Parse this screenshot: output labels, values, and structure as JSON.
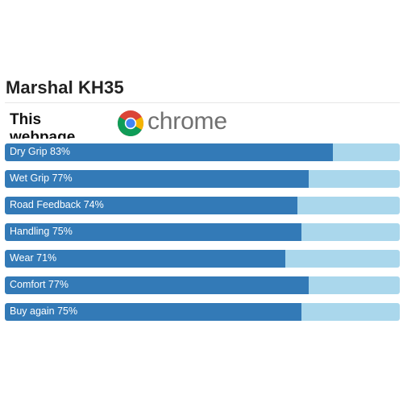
{
  "page": {
    "title": "Marshal KH35",
    "embed_notice": "This webpage is",
    "chrome_wordmark": "chrome"
  },
  "colors": {
    "bar_fill": "#337ab7",
    "bar_track": "#aad7ec",
    "label_text": "#ffffff"
  },
  "ratings": [
    {
      "label": "Dry Grip 83%",
      "percent": 83
    },
    {
      "label": "Wet Grip 77%",
      "percent": 77
    },
    {
      "label": "Road Feedback 74%",
      "percent": 74
    },
    {
      "label": "Handling 75%",
      "percent": 75
    },
    {
      "label": "Wear 71%",
      "percent": 71
    },
    {
      "label": "Comfort 77%",
      "percent": 77
    },
    {
      "label": "Buy again 75%",
      "percent": 75
    }
  ]
}
